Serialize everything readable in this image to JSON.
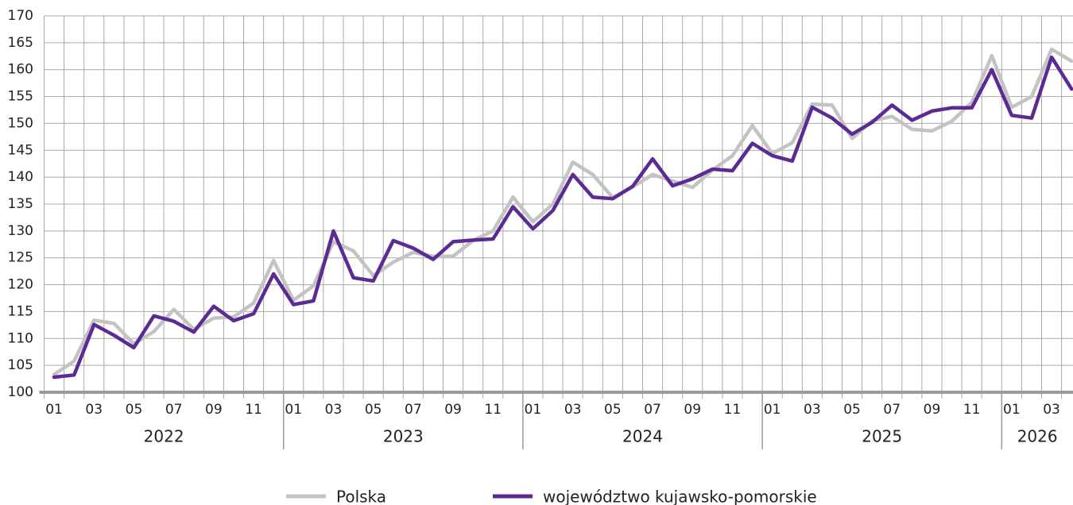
{
  "chart_data": {
    "type": "line",
    "categories": [
      "01",
      null,
      "03",
      null,
      "05",
      null,
      "07",
      null,
      "09",
      null,
      "11",
      null,
      "01",
      null,
      "03",
      null,
      "05",
      null,
      "07",
      null,
      "09",
      null,
      "11",
      null,
      "01",
      null,
      "03",
      null,
      "05",
      null,
      "07",
      null,
      "09",
      null,
      "11",
      null,
      "01",
      null,
      "03",
      null,
      "05",
      null,
      "07",
      null,
      "09",
      null,
      "11",
      null,
      "01",
      null,
      "03",
      null
    ],
    "years": [
      "2022",
      "2023",
      "2024",
      "2025",
      "2026"
    ],
    "series": [
      {
        "name": "Polska",
        "color": "#c3c3c3",
        "values": [
          103.3,
          105.8,
          113.4,
          112.8,
          109.0,
          111.3,
          115.4,
          111.7,
          113.8,
          114.0,
          116.6,
          124.5,
          117.1,
          119.8,
          128.0,
          126.3,
          121.7,
          124.2,
          126.0,
          125.3,
          125.3,
          128.2,
          130.0,
          136.3,
          131.7,
          135.0,
          142.8,
          140.5,
          136.2,
          138.2,
          140.5,
          139.3,
          138.1,
          141.3,
          144.0,
          149.6,
          144.4,
          146.4,
          153.6,
          153.4,
          147.2,
          150.5,
          151.3,
          148.9,
          148.6,
          150.4,
          153.9,
          162.6,
          153.0,
          155.0,
          163.8,
          161.6
        ]
      },
      {
        "name": "województwo kujawsko-pomorskie",
        "color": "#5b2a92",
        "values": [
          102.8,
          103.2,
          112.6,
          110.6,
          108.3,
          114.2,
          113.2,
          111.2,
          116.0,
          113.3,
          114.6,
          122.0,
          116.3,
          117.0,
          130.0,
          121.3,
          120.7,
          128.2,
          126.8,
          124.7,
          128.0,
          128.3,
          128.5,
          134.5,
          130.4,
          133.8,
          140.5,
          136.3,
          136.0,
          138.3,
          143.4,
          138.4,
          139.7,
          141.5,
          141.2,
          146.3,
          144.0,
          143.0,
          153.0,
          151.0,
          148.0,
          150.2,
          153.4,
          150.6,
          152.3,
          152.9,
          152.9,
          160.0,
          151.5,
          151.0,
          162.3,
          156.4
        ]
      }
    ],
    "ylim": [
      100,
      170
    ],
    "yticks": [
      100,
      105,
      110,
      115,
      120,
      125,
      130,
      135,
      140,
      145,
      150,
      155,
      160,
      165,
      170
    ],
    "grid": true
  }
}
